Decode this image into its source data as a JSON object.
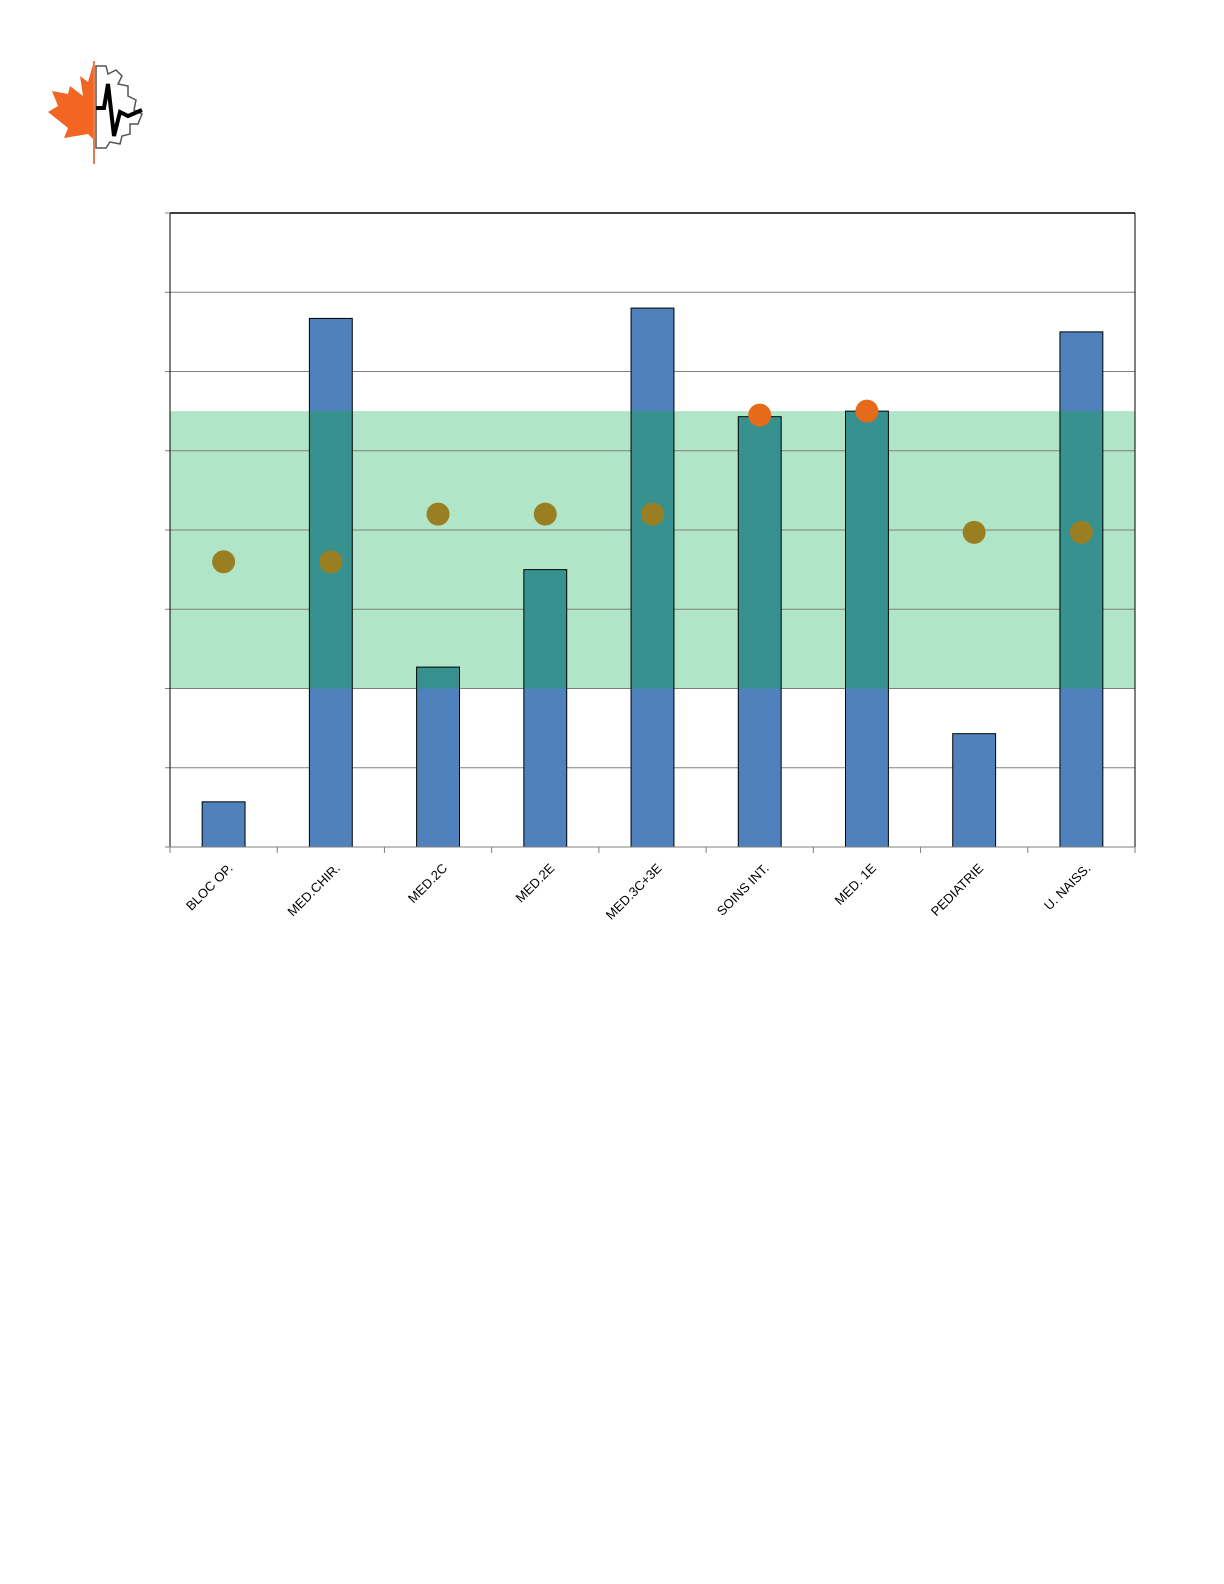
{
  "logo": {
    "name": "maple-leaf-gear-heartbeat-logo"
  },
  "colors": {
    "bar": "#4f81bd",
    "bar_in_band": "#37918f",
    "band": "#b0e5c7",
    "point": "#9a7f22",
    "point_highlight": "#e56a1a",
    "grid": "#7f7f7f"
  },
  "chart_data": {
    "type": "bar",
    "title": "",
    "xlabel": "",
    "ylabel": "",
    "categories": [
      "BLOC OP.",
      "MED.CHIR.",
      "MED.2C",
      "MED.2E",
      "MED.3C+3E",
      "SOINS INT.",
      "MED. 1E",
      "PEDIATRIE",
      "U. NAISS."
    ],
    "series": [
      {
        "type": "bar",
        "values": [
          0.57,
          6.67,
          2.27,
          3.5,
          6.8,
          5.43,
          5.5,
          1.43,
          6.5
        ]
      },
      {
        "type": "scatter",
        "values": [
          3.6,
          3.6,
          4.2,
          4.2,
          4.2,
          5.45,
          5.5,
          3.97,
          3.97
        ],
        "highlight": [
          false,
          false,
          false,
          false,
          false,
          true,
          true,
          false,
          false
        ]
      }
    ],
    "band": {
      "from": 2.0,
      "to": 5.5
    },
    "ylim": [
      0,
      8
    ],
    "y_gridlines": [
      1,
      2,
      3,
      4,
      5,
      6,
      7
    ],
    "y_tick_labels_shown": false,
    "grid": true,
    "legend": "none"
  }
}
